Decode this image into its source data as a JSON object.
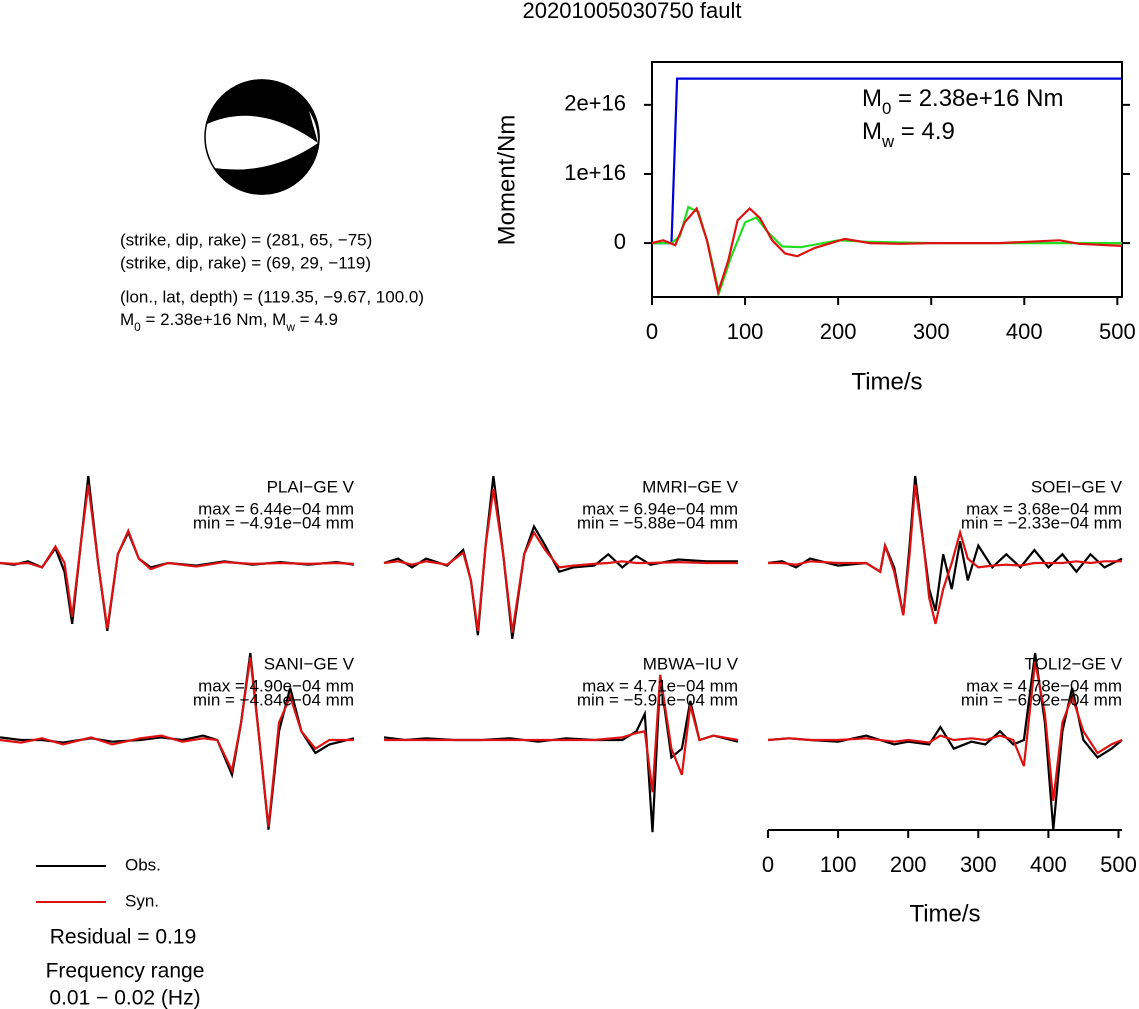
{
  "title": "20201005030750 fault",
  "mechanism": {
    "lines": [
      "(strike, dip, rake) = (281, 65, −75)",
      "(strike, dip, rake) = (69, 29, −119)",
      "(lon., lat, depth) = (119.35, −9.67, 100.0)"
    ],
    "moment_line": [
      "M",
      "0",
      " = 2.38e+16 Nm, M",
      "w",
      " = 4.9"
    ]
  },
  "chart_data": [
    {
      "type": "line",
      "xlabel": "Time/s",
      "ylabel": "Moment/Nm",
      "xlim": [
        0,
        505
      ],
      "ylim": [
        -7800000000000000.0,
        2.62e+16
      ],
      "xticks": [
        0,
        100,
        200,
        300,
        400,
        500
      ],
      "yticks": [
        0,
        {
          "value": 1e+16,
          "label": "1e+16"
        },
        {
          "value": 2e+16,
          "label": "2e+16"
        }
      ],
      "annotations": [
        [
          "M",
          "0",
          " = 2.38e+16 Nm"
        ],
        [
          "M",
          "w",
          " = 4.9"
        ]
      ],
      "series": [
        {
          "color": "#0000dd",
          "x": [
            0,
            21,
            27,
            505
          ],
          "values": [
            0,
            0,
            2.38e+16,
            2.38e+16
          ]
        },
        {
          "color": "#22dd22",
          "x": [
            0,
            21,
            30,
            39,
            50,
            60,
            72,
            85,
            100,
            112,
            125,
            140,
            160,
            200,
            230,
            300,
            505
          ],
          "values": [
            0,
            0,
            1000000000000000.0,
            5200000000000000.0,
            4500000000000000.0,
            0,
            -7200000000000000.0,
            -2000000000000000.0,
            3000000000000000.0,
            3700000000000000.0,
            1500000000000000.0,
            -500000000000000.0,
            -600000000000000.0,
            400000000000000.0,
            200000000000000.0,
            0,
            0
          ]
        },
        {
          "color": "#dd1111",
          "x": [
            0,
            12,
            25,
            35,
            48,
            59,
            71,
            82,
            92,
            105,
            116,
            129,
            143,
            156,
            175,
            207,
            234,
            266,
            300,
            373,
            438,
            459,
            505
          ],
          "values": [
            0,
            400000000000000.0,
            -300000000000000.0,
            3000000000000000.0,
            5000000000000000.0,
            400000000000000.0,
            -7100000000000000.0,
            -2500000000000000.0,
            3300000000000000.0,
            5000000000000000.0,
            3600000000000000.0,
            400000000000000.0,
            -1500000000000000.0,
            -1900000000000000.0,
            -700000000000000.0,
            600000000000000.0,
            0,
            -100000000000000.0,
            0,
            0,
            400000000000000.0,
            -100000000000000.0,
            -400000000000000.0
          ]
        }
      ]
    },
    {
      "type": "waveform",
      "xlabel": "Time/s",
      "xlim": [
        0,
        505
      ],
      "xticks": [
        0,
        100,
        200,
        300,
        400,
        500
      ],
      "legend": [
        {
          "name": "Obs.",
          "color": "#000000"
        },
        {
          "name": "Syn.",
          "color": "#dd1111"
        }
      ],
      "residual": "Residual = 0.19",
      "frequency": [
        "Frequency range",
        "0.01 − 0.02 (Hz)"
      ],
      "panels": [
        {
          "station": "PLAI−GE V",
          "max": "max = 6.44e−04 mm",
          "min": "min = −4.91e−04 mm",
          "x": [
            0,
            20,
            40,
            60,
            79,
            92,
            103,
            115,
            126,
            140,
            153,
            168,
            183,
            198,
            215,
            240,
            280,
            320,
            360,
            400,
            440,
            480,
            505
          ],
          "obs": [
            0,
            -0.02,
            0.02,
            -0.05,
            0.17,
            -0.1,
            -0.7,
            0.2,
            1.0,
            0.0,
            -0.78,
            0.1,
            0.35,
            0.05,
            -0.05,
            0.0,
            -0.03,
            0.02,
            -0.02,
            0.01,
            -0.02,
            0.01,
            -0.02
          ],
          "syn": [
            0,
            -0.01,
            0.0,
            -0.05,
            0.19,
            0.0,
            -0.62,
            0.2,
            0.9,
            0.0,
            -0.75,
            0.1,
            0.37,
            0.05,
            -0.07,
            0.0,
            -0.04,
            0.01,
            -0.01,
            0.0,
            -0.01,
            0.0,
            -0.01
          ]
        },
        {
          "station": "MMRI−GE V",
          "max": "max = 6.94e−04 mm",
          "min": "min = −5.88e−04 mm",
          "x": [
            0,
            20,
            40,
            60,
            90,
            113,
            124,
            134,
            145,
            156,
            170,
            183,
            200,
            214,
            230,
            250,
            270,
            300,
            320,
            340,
            360,
            380,
            420,
            460,
            505
          ],
          "obs": [
            0,
            0.05,
            -0.05,
            0.05,
            -0.03,
            0.15,
            -0.2,
            -0.83,
            0.2,
            1.0,
            0.1,
            -0.87,
            0.1,
            0.42,
            0.2,
            -0.1,
            -0.05,
            -0.03,
            0.1,
            -0.05,
            0.08,
            -0.02,
            0.04,
            0.02,
            0.02
          ],
          "syn": [
            0,
            0.02,
            -0.02,
            0.02,
            -0.02,
            0.12,
            -0.2,
            -0.78,
            0.2,
            0.85,
            0.1,
            -0.8,
            0.1,
            0.35,
            0.15,
            -0.05,
            -0.03,
            -0.01,
            0.0,
            0.02,
            0.0,
            0.0,
            0.01,
            0.0,
            0.0
          ]
        },
        {
          "station": "SOEI−GE V",
          "max": "max = 3.68e−04 mm",
          "min": "min = −2.33e−04 mm",
          "x": [
            0,
            20,
            40,
            60,
            100,
            140,
            160,
            167,
            180,
            193,
            202,
            210,
            222,
            230,
            239,
            250,
            262,
            274,
            285,
            300,
            320,
            340,
            360,
            380,
            400,
            420,
            440,
            460,
            480,
            505
          ],
          "obs": [
            0,
            0.02,
            -0.05,
            0.05,
            -0.03,
            0.0,
            -0.1,
            0.2,
            -0.05,
            -0.6,
            0.2,
            1.0,
            0.2,
            -0.3,
            -0.55,
            0.1,
            -0.3,
            0.25,
            -0.2,
            0.2,
            -0.05,
            0.1,
            -0.05,
            0.15,
            -0.05,
            0.1,
            -0.1,
            0.1,
            -0.05,
            0.05
          ],
          "syn": [
            0,
            0.0,
            -0.02,
            0.02,
            0.0,
            0.0,
            -0.1,
            0.2,
            -0.1,
            -0.6,
            0.1,
            0.9,
            0.2,
            -0.4,
            -0.7,
            -0.3,
            0.0,
            0.35,
            0.05,
            -0.05,
            -0.03,
            -0.02,
            -0.03,
            0.0,
            0.0,
            0.0,
            0.02,
            0.0,
            0.02,
            0.02
          ]
        },
        {
          "station": "SANI−GE V",
          "max": "max = 4.90e−04 mm",
          "min": "min = −4.84e−04 mm",
          "x": [
            0,
            30,
            60,
            90,
            130,
            160,
            200,
            230,
            260,
            290,
            310,
            331,
            344,
            357,
            370,
            383,
            398,
            414,
            430,
            450,
            470,
            505
          ],
          "obs": [
            0.03,
            0.0,
            0.0,
            -0.03,
            0.02,
            -0.02,
            0.0,
            0.03,
            0.0,
            0.05,
            0.0,
            -0.4,
            0.2,
            1.0,
            0.0,
            -1.03,
            0.1,
            0.6,
            0.1,
            -0.15,
            -0.05,
            0.02
          ],
          "syn": [
            0.0,
            -0.03,
            0.02,
            -0.05,
            0.03,
            -0.05,
            0.02,
            0.05,
            -0.02,
            0.02,
            0.0,
            -0.35,
            0.2,
            0.95,
            0.0,
            -1.0,
            0.2,
            0.5,
            0.1,
            -0.1,
            0.0,
            0.0
          ]
        },
        {
          "station": "MBWA−IU V",
          "max": "max = 4.71e−04 mm",
          "min": "min = −5.91e−04 mm",
          "x": [
            0,
            30,
            60,
            100,
            140,
            180,
            220,
            260,
            300,
            340,
            360,
            372,
            383,
            394,
            410,
            425,
            437,
            450,
            470,
            505
          ],
          "obs": [
            0.03,
            0.0,
            0.02,
            0.0,
            0.0,
            0.02,
            -0.02,
            0.02,
            0.0,
            0.0,
            0.1,
            0.3,
            -1.06,
            0.73,
            -0.2,
            -0.1,
            0.45,
            0.0,
            0.05,
            -0.02
          ],
          "syn": [
            0.0,
            0.0,
            0.0,
            0.0,
            0.0,
            0.0,
            0.0,
            0.0,
            0.0,
            0.03,
            0.08,
            0.1,
            -0.6,
            0.75,
            -0.1,
            -0.4,
            0.4,
            0.0,
            0.05,
            0.0
          ]
        },
        {
          "station": "TOLI2−GE V",
          "max": "max = 4.78e−04 mm",
          "min": "min = −6.92e−04 mm",
          "x": [
            0,
            30,
            60,
            100,
            140,
            180,
            200,
            230,
            246,
            265,
            290,
            310,
            331,
            350,
            365,
            381,
            395,
            407,
            420,
            434,
            450,
            470,
            490,
            505
          ],
          "obs": [
            0.0,
            0.02,
            0.0,
            -0.02,
            0.05,
            -0.05,
            -0.02,
            -0.05,
            0.15,
            -0.1,
            -0.02,
            -0.05,
            0.1,
            -0.05,
            0.0,
            1.0,
            0.2,
            -1.03,
            0.1,
            0.6,
            0.0,
            -0.2,
            -0.1,
            0.0
          ],
          "syn": [
            0.0,
            0.02,
            0.0,
            0.0,
            0.02,
            -0.02,
            0.0,
            -0.03,
            0.05,
            0.0,
            0.02,
            0.0,
            0.05,
            0.0,
            -0.3,
            0.9,
            0.3,
            -0.7,
            0.2,
            0.5,
            0.1,
            -0.15,
            -0.05,
            0.0
          ]
        }
      ]
    }
  ]
}
